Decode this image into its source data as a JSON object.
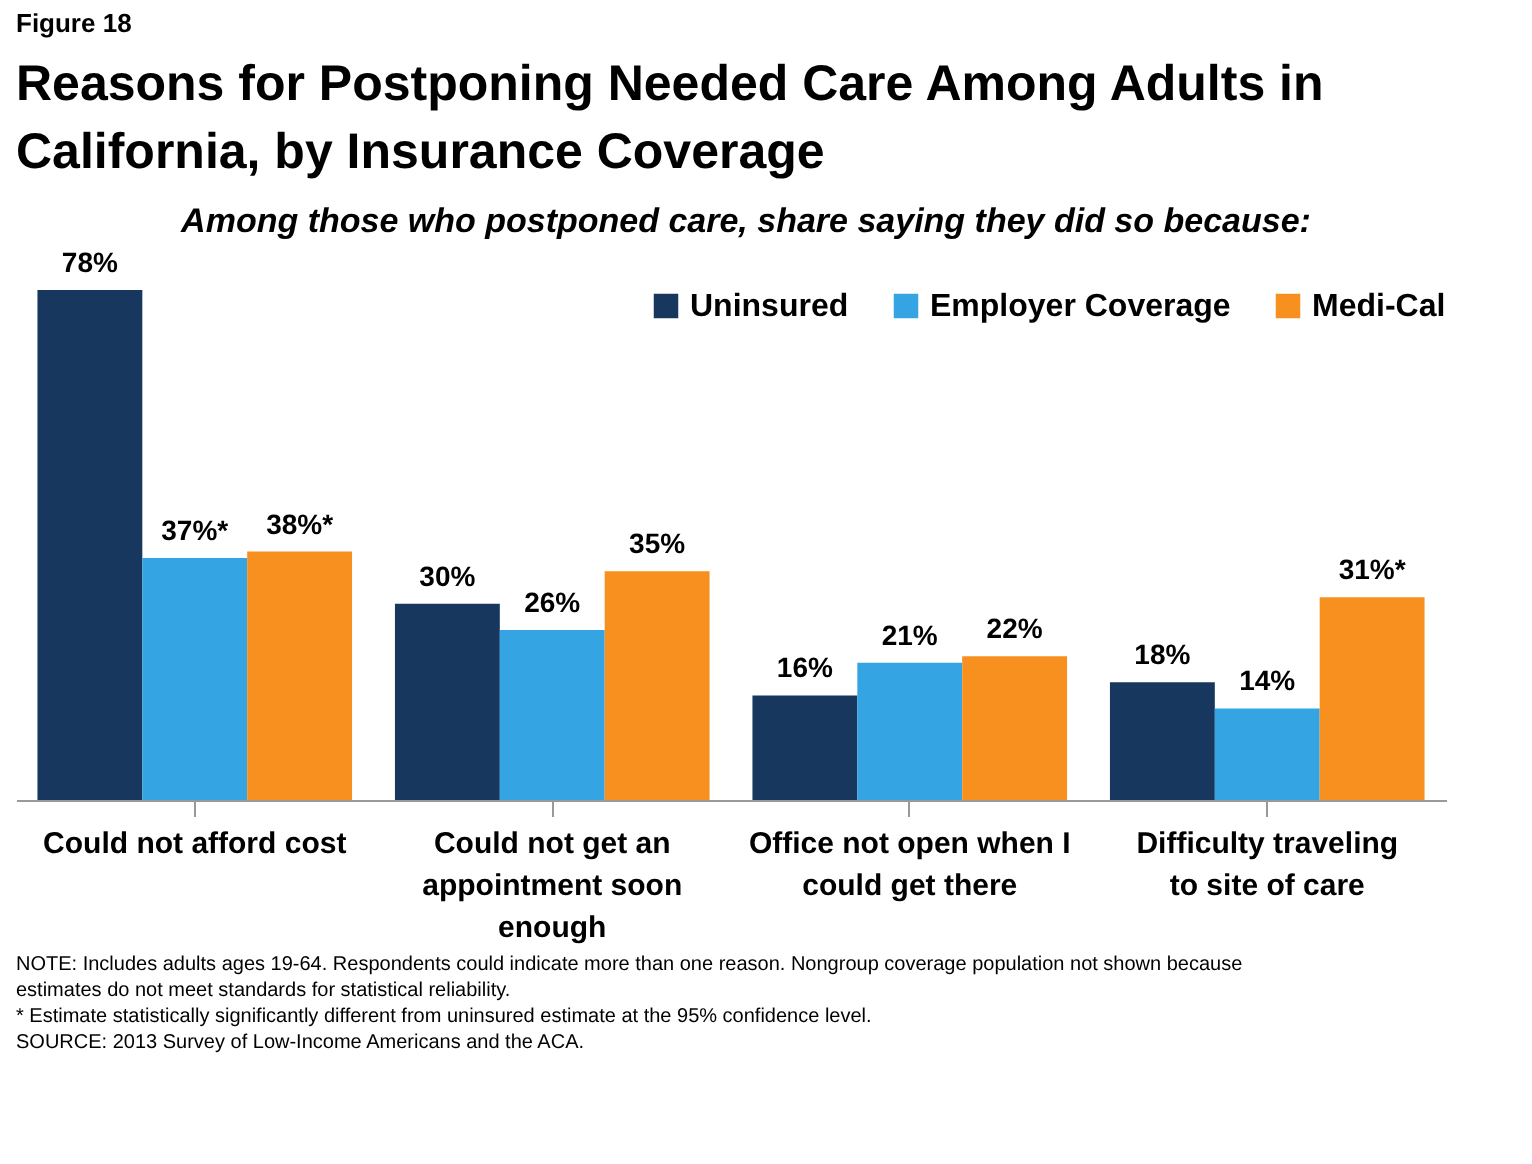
{
  "chart_data": {
    "type": "bar",
    "title": "Reasons for Postponing Needed Care Among Adults in California, by Insurance Coverage",
    "subtitle": "Among those who postponed care, share saying they did so because:",
    "categories": [
      "Could not afford cost",
      "Could not get an appointment soon enough",
      "Office not open when I could get there",
      "Difficulty traveling to site of care"
    ],
    "series": [
      {
        "name": "Uninsured",
        "color": "#17375e",
        "values": [
          78,
          30,
          16,
          18
        ],
        "value_labels": [
          "78%",
          "30%",
          "16%",
          "18%"
        ]
      },
      {
        "name": "Employer Coverage",
        "color": "#35a4e3",
        "values": [
          37,
          26,
          21,
          14
        ],
        "value_labels": [
          "37%*",
          "26%",
          "21%",
          "14%"
        ]
      },
      {
        "name": "Medi-Cal",
        "color": "#f7901e",
        "values": [
          38,
          35,
          22,
          31
        ],
        "value_labels": [
          "38%*",
          "35%",
          "22%",
          "31%*"
        ]
      }
    ],
    "legend": "top",
    "grid": false,
    "annotations": [
      "Figure 18",
      "NOTE: Includes adults ages 19-64. Respondents could indicate more than one reason. Nongroup coverage population not shown because estimates do not meet standards for statistical reliability.",
      "* Estimate statistically significantly different from uninsured estimate  at the 95% confidence level.",
      "SOURCE: 2013 Survey of Low-Income Americans and the ACA."
    ]
  }
}
